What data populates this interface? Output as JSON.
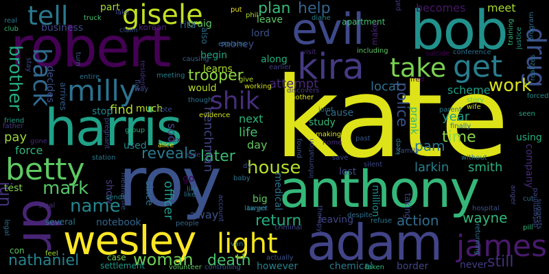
{
  "words": [
    {
      "text": "kate",
      "color": "#dde318"
    },
    {
      "text": "roy",
      "color": "#3b528b"
    },
    {
      "text": "robert",
      "color": "#440154"
    },
    {
      "text": "bob",
      "color": "#21918c"
    },
    {
      "text": "harris",
      "color": "#1fa187"
    },
    {
      "text": "anthony",
      "color": "#35b779"
    },
    {
      "text": "adam",
      "color": "#414487"
    },
    {
      "text": "wesley",
      "color": "#fde725"
    },
    {
      "text": "evil",
      "color": "#3e4989"
    },
    {
      "text": "kira",
      "color": "#443a83"
    },
    {
      "text": "dr",
      "color": "#482475"
    },
    {
      "text": "milly",
      "color": "#2c728e"
    },
    {
      "text": "betty",
      "color": "#5ec962"
    },
    {
      "text": "james",
      "color": "#481a6c"
    },
    {
      "text": "gisele",
      "color": "#c2df23"
    },
    {
      "text": "get",
      "color": "#287d8e"
    },
    {
      "text": "take",
      "color": "#7ad151"
    },
    {
      "text": "light",
      "color": "#f4e61e"
    },
    {
      "text": "shik",
      "color": "#472d7b"
    },
    {
      "text": "tell",
      "color": "#2a788e"
    },
    {
      "text": "drug",
      "color": "#3b528b"
    },
    {
      "text": "back",
      "color": "#31688e"
    },
    {
      "text": "brother",
      "color": "#25ab82"
    },
    {
      "text": "name",
      "color": "#24868e"
    },
    {
      "text": "woman",
      "color": "#6ece58"
    },
    {
      "text": "house",
      "color": "#b5de2b"
    },
    {
      "text": "work",
      "color": "#d8e219"
    },
    {
      "text": "mark",
      "color": "#56c667"
    },
    {
      "text": "jun",
      "color": "#46337e"
    },
    {
      "text": "nathaniel",
      "color": "#26828e"
    },
    {
      "text": "trooper",
      "color": "#8fd744"
    },
    {
      "text": "plan",
      "color": "#38b977"
    },
    {
      "text": "help",
      "color": "#32648e"
    },
    {
      "text": "return",
      "color": "#26ad81"
    },
    {
      "text": "death",
      "color": "#4ac16d"
    },
    {
      "text": "still",
      "color": "#472f7d"
    },
    {
      "text": "action",
      "color": "#2e6f8e"
    },
    {
      "text": "wayne",
      "color": "#32b67a"
    },
    {
      "text": "reveals",
      "color": "#297a8e"
    },
    {
      "text": "later",
      "color": "#3bbb75"
    },
    {
      "text": "police",
      "color": "#3b528b"
    },
    {
      "text": "pam",
      "color": "#2a788e"
    },
    {
      "text": "time",
      "color": "#8bd646"
    },
    {
      "text": "larkin",
      "color": "#26828e"
    },
    {
      "text": "smith",
      "color": "#2ab07f"
    },
    {
      "text": "year",
      "color": "#1f9e89"
    },
    {
      "text": "becomes",
      "color": "#481769"
    },
    {
      "text": "meet",
      "color": "#a8db34"
    },
    {
      "text": "local",
      "color": "#2d718e"
    },
    {
      "text": "attempt",
      "color": "#482878"
    },
    {
      "text": "scheme",
      "color": "#1fa088"
    },
    {
      "text": "find",
      "color": "#b0dd2f"
    },
    {
      "text": "pay",
      "color": "#9bd93c"
    },
    {
      "text": "force",
      "color": "#2fb47c"
    },
    {
      "text": "day",
      "color": "#60ca60"
    },
    {
      "text": "life",
      "color": "#46c06f"
    },
    {
      "text": "next",
      "color": "#2fb47c"
    },
    {
      "text": "soo",
      "color": "#3e4989"
    },
    {
      "text": "henchman",
      "color": "#414487"
    },
    {
      "text": "officer",
      "color": "#1e9b8a"
    },
    {
      "text": "away",
      "color": "#3a548c"
    },
    {
      "text": "notebook",
      "color": "#31688e"
    },
    {
      "text": "study",
      "color": "#37b878"
    },
    {
      "text": "cause",
      "color": "#2e6f8e"
    },
    {
      "text": "lost",
      "color": "#3d4d8a"
    },
    {
      "text": "big",
      "color": "#62cb5f"
    },
    {
      "text": "leaving",
      "color": "#3f4788"
    },
    {
      "text": "million",
      "color": "#228b8d"
    },
    {
      "text": "medical",
      "color": "#2d718e"
    },
    {
      "text": "prank",
      "color": "#2fb47c"
    },
    {
      "text": "using",
      "color": "#2ab07f"
    },
    {
      "text": "company",
      "color": "#472c7a"
    },
    {
      "text": "money",
      "color": "#3e4c8a"
    },
    {
      "text": "along",
      "color": "#26ad81"
    },
    {
      "text": "craig",
      "color": "#5ec962"
    },
    {
      "text": "rita",
      "color": "#34608d"
    },
    {
      "text": "lord",
      "color": "#3b528b"
    },
    {
      "text": "leave",
      "color": "#5ec962"
    },
    {
      "text": "business",
      "color": "#3f4889"
    },
    {
      "text": "korean",
      "color": "#482173"
    },
    {
      "text": "learns",
      "color": "#addc30"
    },
    {
      "text": "begin",
      "color": "#21a685"
    },
    {
      "text": "would",
      "color": "#b8de29"
    },
    {
      "text": "apartment",
      "color": "#43bf71"
    },
    {
      "text": "make",
      "color": "#482475"
    },
    {
      "text": "much",
      "color": "#c0df25"
    },
    {
      "text": "stop",
      "color": "#24868e"
    },
    {
      "text": "used",
      "color": "#24878e"
    },
    {
      "text": "show",
      "color": "#433e85"
    },
    {
      "text": "since",
      "color": "#2e6e8e"
    },
    {
      "text": "test",
      "color": "#7fd34e"
    },
    {
      "text": "go",
      "color": "#440154"
    },
    {
      "text": "decides",
      "color": "#3b528b"
    },
    {
      "text": "arrives",
      "color": "#355f8d"
    },
    {
      "text": "however",
      "color": "#26828e"
    },
    {
      "text": "chemical",
      "color": "#287c8e"
    },
    {
      "text": "border",
      "color": "#404588"
    },
    {
      "text": "never",
      "color": "#433e85"
    },
    {
      "text": "part",
      "color": "#a5db36"
    },
    {
      "text": "also",
      "color": "#2d708e"
    },
    {
      "text": "explains",
      "color": "#2c728e"
    },
    {
      "text": "discovers",
      "color": "#453882"
    },
    {
      "text": "including",
      "color": "#5cc863"
    },
    {
      "text": "evidence",
      "color": "#d2e21b"
    },
    {
      "text": "taking",
      "color": "#3e4989"
    },
    {
      "text": "therapy",
      "color": "#404588"
    },
    {
      "text": "despite",
      "color": "#2d718e"
    },
    {
      "text": "sends",
      "color": "#27808e"
    },
    {
      "text": "several",
      "color": "#2a778e"
    },
    {
      "text": "settlement",
      "color": "#1f998a"
    },
    {
      "text": "volunteer",
      "color": "#5ec962"
    },
    {
      "text": "taken",
      "color": "#31b57b"
    },
    {
      "text": "criminal",
      "color": "#3f4889"
    },
    {
      "text": "lawyer",
      "color": "#26828e"
    },
    {
      "text": "account",
      "color": "#3e4a89"
    },
    {
      "text": "people",
      "color": "#31688e"
    },
    {
      "text": "like",
      "color": "#2c738e"
    },
    {
      "text": "steal",
      "color": "#443983"
    },
    {
      "text": "legal",
      "color": "#2f6c8e"
    },
    {
      "text": "feel",
      "color": "#a2da37"
    },
    {
      "text": "case",
      "color": "#73d056"
    },
    {
      "text": "meanwhile",
      "color": "#3c4f8a"
    },
    {
      "text": "pregnant",
      "color": "#414487"
    },
    {
      "text": "station",
      "color": "#2a788e"
    },
    {
      "text": "alice",
      "color": "#e5e419"
    },
    {
      "text": "sex",
      "color": "#48186a"
    },
    {
      "text": "group",
      "color": "#26ad81"
    },
    {
      "text": "friend",
      "color": "#1f9f88"
    },
    {
      "text": "father",
      "color": "#433d84"
    },
    {
      "text": "gone",
      "color": "#472a7a"
    },
    {
      "text": "entire",
      "color": "#2c728e"
    },
    {
      "text": "turn",
      "color": "#3b528b"
    },
    {
      "text": "way",
      "color": "#3e4c8a"
    },
    {
      "text": "flat",
      "color": "#3a538b"
    },
    {
      "text": "resident",
      "color": "#472f7d"
    },
    {
      "text": "meeting",
      "color": "#27808e"
    },
    {
      "text": "causing",
      "color": "#355e8d"
    },
    {
      "text": "give",
      "color": "#b2dd2d"
    },
    {
      "text": "working",
      "color": "#d2e21b"
    },
    {
      "text": "though",
      "color": "#2c728e"
    },
    {
      "text": "note",
      "color": "#3b528b"
    },
    {
      "text": "phil",
      "color": "#addc30"
    },
    {
      "text": "put",
      "color": "#f1e51d"
    },
    {
      "text": "diane",
      "color": "#25838e"
    },
    {
      "text": "visit",
      "color": "#472c7a"
    },
    {
      "text": "earlier",
      "color": "#433d84"
    },
    {
      "text": "patient",
      "color": "#453781"
    },
    {
      "text": "program",
      "color": "#2d708e"
    },
    {
      "text": "training",
      "color": "#35b779"
    },
    {
      "text": "justice",
      "color": "#1e9c89"
    },
    {
      "text": "fred",
      "color": "#46085c"
    },
    {
      "text": "suicide",
      "color": "#440154"
    },
    {
      "text": "conference",
      "color": "#2c728e"
    },
    {
      "text": "realizes",
      "color": "#2a768e"
    },
    {
      "text": "forced",
      "color": "#228d8d"
    },
    {
      "text": "story",
      "color": "#5ec962"
    },
    {
      "text": "parent",
      "color": "#2a788e"
    },
    {
      "text": "wife",
      "color": "#d0e11c"
    },
    {
      "text": "finally",
      "color": "#2d708e"
    },
    {
      "text": "seen",
      "color": "#22a884"
    },
    {
      "text": "another",
      "color": "#dde318"
    },
    {
      "text": "joint",
      "color": "#2c728e"
    },
    {
      "text": "making",
      "color": "#dde318"
    },
    {
      "text": "home",
      "color": "#472d7b"
    },
    {
      "text": "found",
      "color": "#3c508b"
    },
    {
      "text": "past",
      "color": "#38598c"
    },
    {
      "text": "save",
      "color": "#3e4a89"
    },
    {
      "text": "silent",
      "color": "#3e4989"
    },
    {
      "text": "keep",
      "color": "#277f8e"
    },
    {
      "text": "family",
      "color": "#3b528b"
    },
    {
      "text": "without",
      "color": "#2a778e"
    },
    {
      "text": "hospital",
      "color": "#3b528b"
    },
    {
      "text": "refuse",
      "color": "#2a788e"
    },
    {
      "text": "information",
      "color": "#3e4989"
    },
    {
      "text": "target",
      "color": "#2c738e"
    },
    {
      "text": "actually",
      "color": "#3b528b"
    },
    {
      "text": "controlling",
      "color": "#3a548c"
    },
    {
      "text": "cut",
      "color": "#2d708e"
    },
    {
      "text": "anger",
      "color": "#414487"
    },
    {
      "text": "pill",
      "color": "#32b67a"
    },
    {
      "text": "suggests",
      "color": "#3b528b"
    },
    {
      "text": "determined",
      "color": "#3e4989"
    },
    {
      "text": "returning",
      "color": "#2d708e"
    },
    {
      "text": "van",
      "color": "#2a788e"
    },
    {
      "text": "con",
      "color": "#5ec962"
    },
    {
      "text": "real",
      "color": "#2a788e"
    },
    {
      "text": "club",
      "color": "#32b67a"
    },
    {
      "text": "stay",
      "color": "#3e4989"
    },
    {
      "text": "claim",
      "color": "#3b528b"
    },
    {
      "text": "truck",
      "color": "#46c06f"
    },
    {
      "text": "lake",
      "color": "#3e4a89"
    },
    {
      "text": "baby",
      "color": "#2c728e"
    },
    {
      "text": "side",
      "color": "#443983"
    },
    {
      "text": "dy",
      "color": "#3b528b"
    },
    {
      "text": "like",
      "color": "#2a788e"
    }
  ]
}
